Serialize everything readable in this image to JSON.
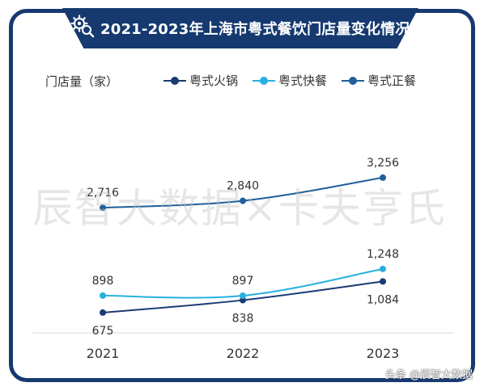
{
  "chart_data": {
    "type": "line",
    "title": "2021-2023年上海市粤式餐饮门店量变化情况",
    "ylabel": "门店量（家）",
    "xlabel": "",
    "categories": [
      "2021",
      "2022",
      "2023"
    ],
    "series": [
      {
        "name": "粤式火锅",
        "values": [
          675,
          838,
          1084
        ],
        "color": "#1a3b73",
        "data_labels": [
          "675",
          "838",
          "1,084"
        ],
        "label_position": "below"
      },
      {
        "name": "粤式快餐",
        "values": [
          898,
          897,
          1248
        ],
        "color": "#27b0e0",
        "data_labels": [
          "898",
          "897",
          "1,248"
        ],
        "label_position": "above"
      },
      {
        "name": "粤式正餐",
        "values": [
          2716,
          2840,
          3256
        ],
        "color": "#1f5f9a",
        "data_labels": [
          "2,716",
          "2,840",
          "3,256"
        ],
        "label_position": "above"
      }
    ],
    "y_axis_visible": false,
    "grid": false,
    "legend_position": "top"
  },
  "watermark": "辰智大数据×卡夫亨氏",
  "corner_watermark": "头条 @辰智大数据",
  "icons": {
    "title": "gear-magnifier-icon"
  }
}
